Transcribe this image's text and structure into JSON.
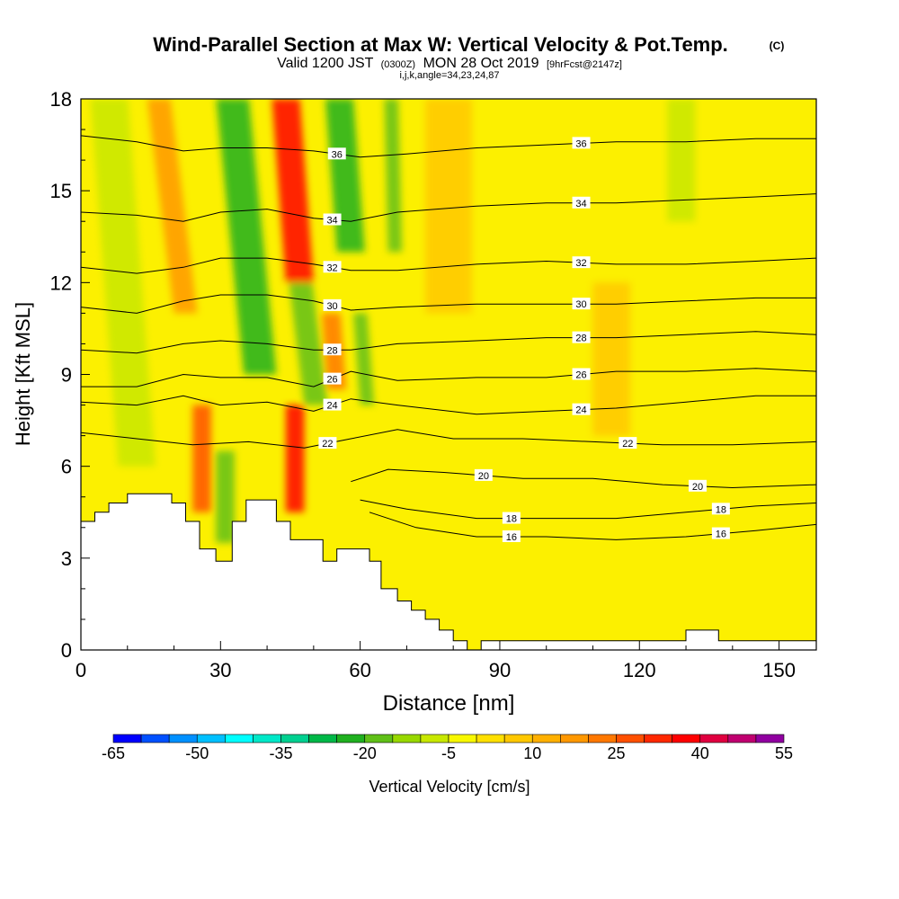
{
  "chart_data": {
    "type": "heatmap",
    "title": "Wind-Parallel Section at Max W: Vertical Velocity & Pot.Temp.",
    "title_mark": "(C)",
    "valid_prefix": "Valid 1200 JST",
    "valid_utc": "(0300Z)",
    "valid_date": "MON 28 Oct 2019",
    "forecast": "[9hrFcst@2147z]",
    "indices": "i,j,k,angle=34,23,24,87",
    "xlabel": "Distance [nm]",
    "ylabel": "Height [Kft MSL]",
    "xlim": [
      0,
      158
    ],
    "ylim": [
      0,
      18
    ],
    "xticks": [
      0,
      30,
      60,
      90,
      120,
      150
    ],
    "yticks": [
      0,
      3,
      6,
      9,
      12,
      15,
      18
    ],
    "colorbar": {
      "label": "Vertical Velocity [cm/s]",
      "min": -65,
      "max": 55,
      "step": 5,
      "tick_labels": [
        -65,
        -50,
        -35,
        -20,
        -5,
        10,
        25,
        40,
        55
      ],
      "colors": [
        "#0000ff",
        "#0050ff",
        "#0090ff",
        "#00c0ff",
        "#00ffff",
        "#00e8c8",
        "#00d090",
        "#00b848",
        "#20b020",
        "#60c018",
        "#98d800",
        "#c8e800",
        "#f8f800",
        "#ffe000",
        "#ffc800",
        "#ffb000",
        "#ff9800",
        "#ff7800",
        "#ff5000",
        "#ff2800",
        "#ff0000",
        "#e00040",
        "#c00070",
        "#9000a0"
      ]
    },
    "terrain": [
      [
        0,
        4.2
      ],
      [
        3,
        4.2
      ],
      [
        3,
        4.5
      ],
      [
        6,
        4.5
      ],
      [
        6,
        4.8
      ],
      [
        10,
        4.8
      ],
      [
        10,
        5.1
      ],
      [
        19.5,
        5.1
      ],
      [
        19.5,
        4.8
      ],
      [
        22.5,
        4.8
      ],
      [
        22.5,
        4.2
      ],
      [
        25.5,
        4.2
      ],
      [
        25.5,
        3.3
      ],
      [
        29,
        3.3
      ],
      [
        29,
        2.9
      ],
      [
        32.5,
        2.9
      ],
      [
        32.5,
        4.2
      ],
      [
        35.5,
        4.2
      ],
      [
        35.5,
        4.9
      ],
      [
        42,
        4.9
      ],
      [
        42,
        4.2
      ],
      [
        45,
        4.2
      ],
      [
        45,
        3.6
      ],
      [
        52,
        3.6
      ],
      [
        52,
        2.9
      ],
      [
        55,
        2.9
      ],
      [
        55,
        3.3
      ],
      [
        62,
        3.3
      ],
      [
        62,
        2.9
      ],
      [
        64.5,
        2.9
      ],
      [
        64.5,
        2.0
      ],
      [
        68,
        2.0
      ],
      [
        68,
        1.6
      ],
      [
        71,
        1.6
      ],
      [
        71,
        1.3
      ],
      [
        74,
        1.3
      ],
      [
        74,
        1.0
      ],
      [
        77,
        1.0
      ],
      [
        77,
        0.65
      ],
      [
        80,
        0.65
      ],
      [
        80,
        0.3
      ],
      [
        83,
        0.3
      ],
      [
        83,
        0
      ],
      [
        86,
        0
      ],
      [
        86,
        0.3
      ],
      [
        130,
        0.3
      ],
      [
        130,
        0.65
      ],
      [
        137,
        0.65
      ],
      [
        137,
        0.3
      ],
      [
        158,
        0.3
      ]
    ],
    "theta_contours": [
      {
        "label": "16",
        "points": [
          [
            62,
            4.5
          ],
          [
            72,
            4.0
          ],
          [
            85,
            3.7
          ],
          [
            100,
            3.7
          ],
          [
            115,
            3.6
          ],
          [
            130,
            3.7
          ],
          [
            145,
            3.9
          ],
          [
            158,
            4.1
          ]
        ]
      },
      {
        "label": "18",
        "points": [
          [
            60,
            4.9
          ],
          [
            70,
            4.6
          ],
          [
            85,
            4.3
          ],
          [
            100,
            4.3
          ],
          [
            115,
            4.3
          ],
          [
            130,
            4.5
          ],
          [
            145,
            4.7
          ],
          [
            158,
            4.8
          ]
        ]
      },
      {
        "label": "20",
        "points": [
          [
            58,
            5.5
          ],
          [
            66,
            5.9
          ],
          [
            78,
            5.8
          ],
          [
            95,
            5.6
          ],
          [
            110,
            5.6
          ],
          [
            125,
            5.4
          ],
          [
            140,
            5.3
          ],
          [
            158,
            5.4
          ]
        ]
      },
      {
        "label": "22",
        "points": [
          [
            0,
            7.1
          ],
          [
            12,
            6.9
          ],
          [
            24,
            6.7
          ],
          [
            36,
            6.8
          ],
          [
            48,
            6.6
          ],
          [
            58,
            6.9
          ],
          [
            68,
            7.2
          ],
          [
            80,
            6.9
          ],
          [
            95,
            6.9
          ],
          [
            110,
            6.8
          ],
          [
            125,
            6.7
          ],
          [
            140,
            6.7
          ],
          [
            158,
            6.8
          ]
        ]
      },
      {
        "label": "24",
        "points": [
          [
            0,
            8.1
          ],
          [
            12,
            8.0
          ],
          [
            22,
            8.3
          ],
          [
            30,
            8.0
          ],
          [
            40,
            8.1
          ],
          [
            50,
            7.8
          ],
          [
            58,
            8.2
          ],
          [
            68,
            8.0
          ],
          [
            85,
            7.7
          ],
          [
            100,
            7.8
          ],
          [
            115,
            7.9
          ],
          [
            130,
            8.1
          ],
          [
            145,
            8.3
          ],
          [
            158,
            8.3
          ]
        ]
      },
      {
        "label": "26",
        "points": [
          [
            0,
            8.6
          ],
          [
            12,
            8.6
          ],
          [
            22,
            9.0
          ],
          [
            30,
            8.9
          ],
          [
            40,
            8.9
          ],
          [
            50,
            8.6
          ],
          [
            58,
            9.1
          ],
          [
            68,
            8.8
          ],
          [
            85,
            8.9
          ],
          [
            100,
            8.9
          ],
          [
            115,
            9.1
          ],
          [
            130,
            9.1
          ],
          [
            145,
            9.2
          ],
          [
            158,
            9.1
          ]
        ]
      },
      {
        "label": "28",
        "points": [
          [
            0,
            9.8
          ],
          [
            12,
            9.7
          ],
          [
            22,
            10.0
          ],
          [
            30,
            10.1
          ],
          [
            40,
            10.0
          ],
          [
            50,
            9.8
          ],
          [
            58,
            9.8
          ],
          [
            68,
            10.0
          ],
          [
            85,
            10.1
          ],
          [
            100,
            10.2
          ],
          [
            115,
            10.2
          ],
          [
            130,
            10.3
          ],
          [
            145,
            10.4
          ],
          [
            158,
            10.3
          ]
        ]
      },
      {
        "label": "30",
        "points": [
          [
            0,
            11.2
          ],
          [
            12,
            11.0
          ],
          [
            22,
            11.4
          ],
          [
            30,
            11.6
          ],
          [
            40,
            11.6
          ],
          [
            50,
            11.4
          ],
          [
            58,
            11.1
          ],
          [
            68,
            11.2
          ],
          [
            85,
            11.3
          ],
          [
            100,
            11.3
          ],
          [
            115,
            11.3
          ],
          [
            130,
            11.4
          ],
          [
            145,
            11.5
          ],
          [
            158,
            11.5
          ]
        ]
      },
      {
        "label": "32",
        "points": [
          [
            0,
            12.5
          ],
          [
            12,
            12.3
          ],
          [
            22,
            12.5
          ],
          [
            30,
            12.8
          ],
          [
            40,
            12.8
          ],
          [
            50,
            12.6
          ],
          [
            58,
            12.4
          ],
          [
            68,
            12.4
          ],
          [
            85,
            12.6
          ],
          [
            100,
            12.7
          ],
          [
            115,
            12.6
          ],
          [
            130,
            12.6
          ],
          [
            145,
            12.7
          ],
          [
            158,
            12.8
          ]
        ]
      },
      {
        "label": "34",
        "points": [
          [
            0,
            14.3
          ],
          [
            12,
            14.2
          ],
          [
            22,
            14.0
          ],
          [
            30,
            14.3
          ],
          [
            40,
            14.4
          ],
          [
            50,
            14.1
          ],
          [
            58,
            14.0
          ],
          [
            68,
            14.3
          ],
          [
            85,
            14.5
          ],
          [
            100,
            14.6
          ],
          [
            115,
            14.6
          ],
          [
            130,
            14.7
          ],
          [
            145,
            14.8
          ],
          [
            158,
            14.9
          ]
        ]
      },
      {
        "label": "36",
        "points": [
          [
            0,
            16.8
          ],
          [
            12,
            16.6
          ],
          [
            22,
            16.3
          ],
          [
            30,
            16.4
          ],
          [
            40,
            16.4
          ],
          [
            50,
            16.3
          ],
          [
            60,
            16.1
          ],
          [
            70,
            16.2
          ],
          [
            85,
            16.4
          ],
          [
            100,
            16.5
          ],
          [
            115,
            16.6
          ],
          [
            130,
            16.6
          ],
          [
            145,
            16.7
          ],
          [
            158,
            16.7
          ]
        ]
      }
    ],
    "velocity_bands": [
      {
        "x": 8,
        "w": 8,
        "y0": 6,
        "y1": 18,
        "value": -10,
        "lean": 0.3
      },
      {
        "x": 20,
        "w": 5,
        "y0": 11,
        "y1": 18,
        "value": 18,
        "lean": 0.5
      },
      {
        "x": 24,
        "w": 4,
        "y0": 4.5,
        "y1": 8,
        "value": 28,
        "lean": 0.0
      },
      {
        "x": 29,
        "w": 4,
        "y0": 3.5,
        "y1": 6.5,
        "value": -20,
        "lean": 0.0
      },
      {
        "x": 35,
        "w": 7,
        "y0": 9,
        "y1": 18,
        "value": -22,
        "lean": 0.4
      },
      {
        "x": 44,
        "w": 6,
        "y0": 12,
        "y1": 18,
        "value": 35,
        "lean": 0.3
      },
      {
        "x": 44,
        "w": 4,
        "y0": 4.5,
        "y1": 8,
        "value": 35,
        "lean": 0.0
      },
      {
        "x": 48,
        "w": 5,
        "y0": 8,
        "y1": 12,
        "value": -18,
        "lean": 0.5
      },
      {
        "x": 55,
        "w": 6,
        "y0": 13,
        "y1": 18,
        "value": -25,
        "lean": 0.3
      },
      {
        "x": 53,
        "w": 4,
        "y0": 8.5,
        "y1": 11,
        "value": 20,
        "lean": 0.3
      },
      {
        "x": 60,
        "w": 3,
        "y0": 8,
        "y1": 11,
        "value": -18,
        "lean": 0.3
      },
      {
        "x": 66,
        "w": 3,
        "y0": 13,
        "y1": 18,
        "value": -18,
        "lean": 0.1
      },
      {
        "x": 74,
        "w": 10,
        "y0": 11,
        "y1": 18,
        "value": 8,
        "lean": 0.0
      },
      {
        "x": 110,
        "w": 8,
        "y0": 7,
        "y1": 12,
        "value": 6,
        "lean": 0.0
      },
      {
        "x": 126,
        "w": 6,
        "y0": 14,
        "y1": 18,
        "value": -8,
        "lean": 0.0
      }
    ]
  }
}
